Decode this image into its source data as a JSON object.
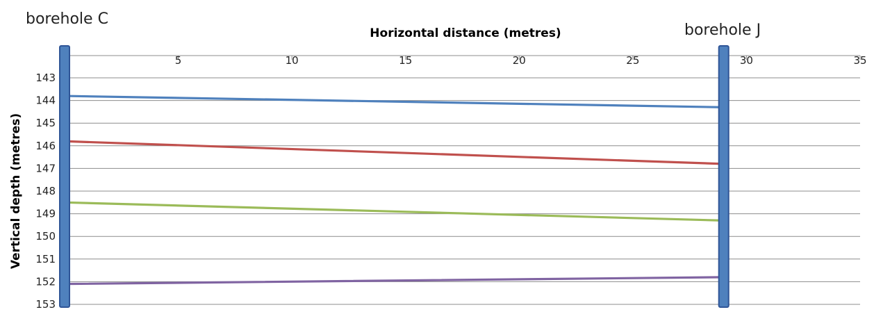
{
  "chart_data": {
    "type": "line",
    "xlabel": "Horizontal distance (metres)",
    "ylabel": "Vertical depth (metres)",
    "xlim": [
      0,
      35
    ],
    "ylim": [
      143,
      153
    ],
    "y_inverted": true,
    "x_axis_position": "top",
    "x_ticks": [
      "5",
      "10",
      "15",
      "20",
      "25",
      "30",
      "35"
    ],
    "y_ticks": [
      "143",
      "144",
      "145",
      "146",
      "147",
      "148",
      "149",
      "150",
      "151",
      "152",
      "153"
    ],
    "grid": "horizontal",
    "boreholes": [
      {
        "label": "borehole C",
        "x": 0,
        "color": "#4f81bd"
      },
      {
        "label": "borehole J",
        "x": 29,
        "color": "#4f81bd"
      }
    ],
    "series": [
      {
        "x": [
          0,
          29
        ],
        "y": [
          143.8,
          144.3
        ],
        "color": "#4f81bd"
      },
      {
        "x": [
          0,
          29
        ],
        "y": [
          145.8,
          146.8
        ],
        "color": "#c0504d"
      },
      {
        "x": [
          0,
          29
        ],
        "y": [
          148.5,
          149.3
        ],
        "color": "#9bbb59"
      },
      {
        "x": [
          0,
          29
        ],
        "y": [
          152.1,
          151.8
        ],
        "color": "#8064a2"
      }
    ]
  }
}
